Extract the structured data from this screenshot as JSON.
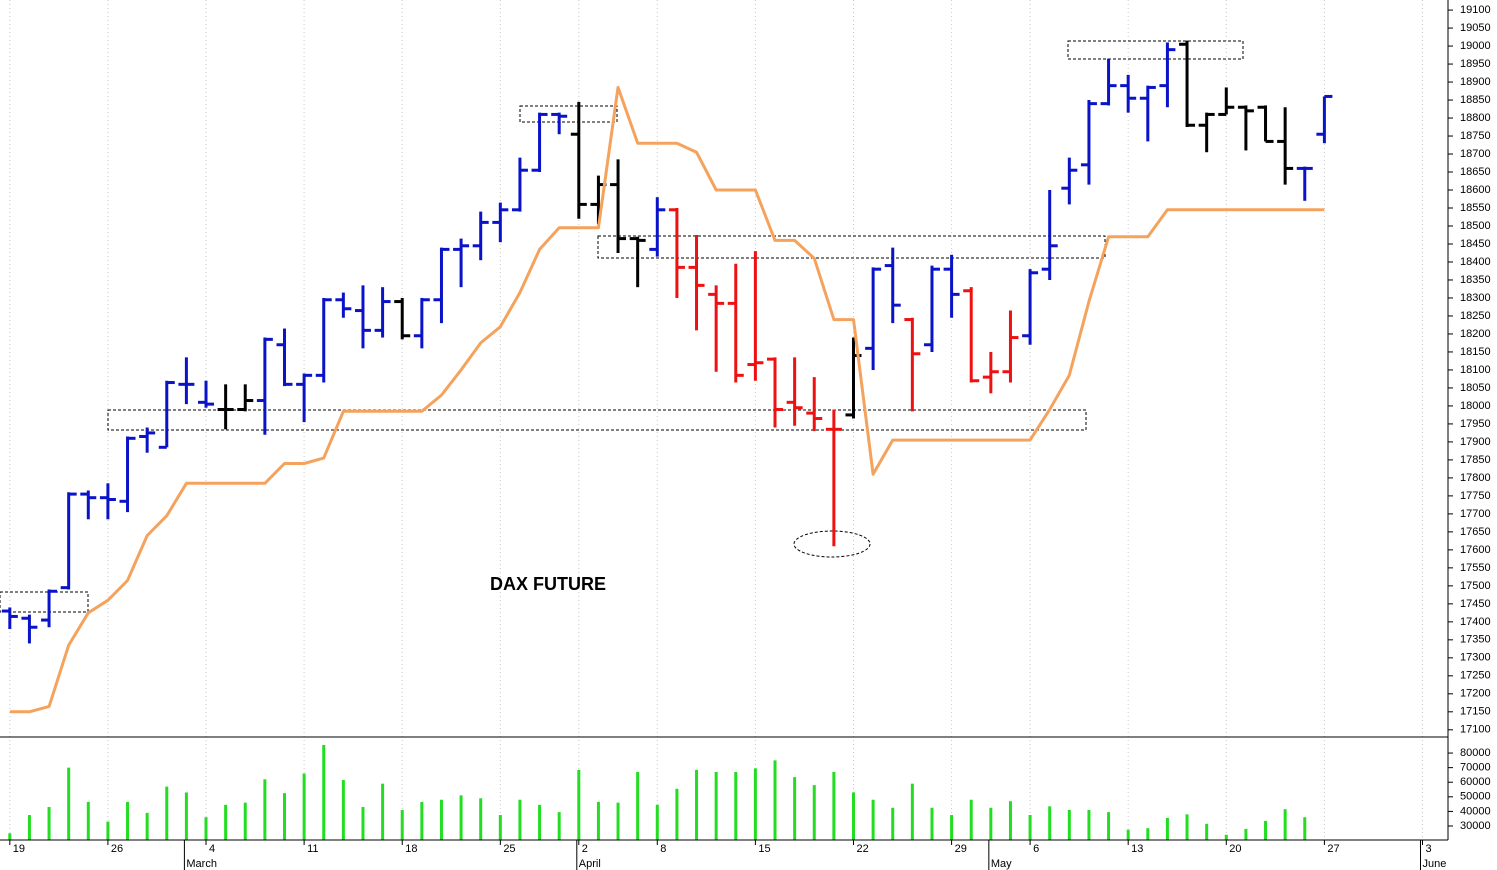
{
  "chart_data": [
    {
      "type": "ohlc",
      "title": "DAX FUTURE",
      "open": [
        17430,
        17410,
        17405,
        17495,
        17755,
        17745,
        17735,
        17915,
        17885,
        18060,
        18010,
        17990,
        17990,
        18015,
        18170,
        18060,
        18085,
        18295,
        18265,
        18210,
        18290,
        18195,
        18295,
        18435,
        18445,
        18510,
        18545,
        18655,
        18810,
        18755,
        18560,
        18615,
        18465,
        18435,
        18545,
        18385,
        18310,
        18285,
        18115,
        18130,
        18010,
        17980,
        17935,
        17975,
        18160,
        18390,
        18240,
        18170,
        18380,
        18320,
        18080,
        18095,
        18195,
        18380,
        18605,
        18670,
        18840,
        18890,
        18855,
        18890,
        19005,
        18780,
        18810,
        18830,
        18830,
        18735,
        18660,
        18755
      ],
      "high": [
        17440,
        17420,
        17490,
        17760,
        17765,
        17785,
        17915,
        17940,
        18070,
        18135,
        18070,
        18060,
        18060,
        18190,
        18215,
        18090,
        18300,
        18315,
        18335,
        18330,
        18300,
        18300,
        18440,
        18465,
        18540,
        18565,
        18690,
        18815,
        18815,
        18845,
        18640,
        18685,
        18470,
        18580,
        18550,
        18475,
        18335,
        18395,
        18430,
        18135,
        18135,
        18080,
        17990,
        18190,
        18385,
        18440,
        18245,
        18390,
        18420,
        18330,
        18150,
        18265,
        18380,
        18600,
        18690,
        18850,
        18965,
        18920,
        18890,
        19010,
        19015,
        18815,
        18885,
        18835,
        18835,
        18830,
        18665,
        18860
      ],
      "low": [
        17380,
        17340,
        17385,
        17490,
        17685,
        17685,
        17705,
        17870,
        17885,
        18005,
        17995,
        17935,
        17985,
        17920,
        18055,
        17955,
        18065,
        18245,
        18160,
        18190,
        18185,
        18160,
        18230,
        18330,
        18405,
        18455,
        18540,
        18650,
        18755,
        18520,
        18505,
        18425,
        18330,
        18415,
        18300,
        18210,
        18095,
        18065,
        18070,
        17940,
        17945,
        17930,
        17610,
        17965,
        18100,
        18230,
        17985,
        18150,
        18245,
        18065,
        18035,
        18065,
        18170,
        18350,
        18560,
        18615,
        18835,
        18815,
        18735,
        18830,
        18775,
        18705,
        18810,
        18710,
        18735,
        18615,
        18570,
        18730
      ],
      "close": [
        17415,
        17385,
        17485,
        17755,
        17745,
        17740,
        17910,
        17925,
        18065,
        18060,
        18005,
        17990,
        18015,
        18185,
        18060,
        18085,
        18295,
        18270,
        18210,
        18290,
        18195,
        18295,
        18435,
        18445,
        18510,
        18545,
        18655,
        18810,
        18805,
        18560,
        18615,
        18465,
        18460,
        18545,
        18385,
        18335,
        18285,
        18085,
        18120,
        17990,
        17995,
        17965,
        17935,
        18140,
        18380,
        18280,
        18145,
        18380,
        18310,
        18070,
        18095,
        18190,
        18370,
        18445,
        18655,
        18840,
        18890,
        18855,
        18885,
        18990,
        18780,
        18810,
        18830,
        18820,
        18735,
        18660,
        18660,
        18860
      ],
      "colors": [
        "#0b13c8",
        "#0b13c8",
        "#0b13c8",
        "#0b13c8",
        "#0b13c8",
        "#0b13c8",
        "#0b13c8",
        "#0b13c8",
        "#0b13c8",
        "#0b13c8",
        "#0b13c8",
        "#000000",
        "#000000",
        "#0b13c8",
        "#0b13c8",
        "#0b13c8",
        "#0b13c8",
        "#0b13c8",
        "#0b13c8",
        "#0b13c8",
        "#000000",
        "#0b13c8",
        "#0b13c8",
        "#0b13c8",
        "#0b13c8",
        "#0b13c8",
        "#0b13c8",
        "#0b13c8",
        "#0b13c8",
        "#000000",
        "#000000",
        "#000000",
        "#000000",
        "#0b13c8",
        "#ee1111",
        "#ee1111",
        "#ee1111",
        "#ee1111",
        "#ee1111",
        "#ee1111",
        "#ee1111",
        "#ee1111",
        "#ee1111",
        "#000000",
        "#0b13c8",
        "#0b13c8",
        "#ee1111",
        "#0b13c8",
        "#0b13c8",
        "#ee1111",
        "#ee1111",
        "#ee1111",
        "#0b13c8",
        "#0b13c8",
        "#0b13c8",
        "#0b13c8",
        "#0b13c8",
        "#0b13c8",
        "#0b13c8",
        "#0b13c8",
        "#000000",
        "#000000",
        "#000000",
        "#000000",
        "#000000",
        "#000000",
        "#0b13c8",
        "#0b13c8"
      ],
      "overlay": {
        "color": "#f5a25d",
        "values": [
          17150,
          17150,
          17165,
          17335,
          17425,
          17460,
          17515,
          17640,
          17695,
          17785,
          17785,
          17785,
          17785,
          17785,
          17840,
          17840,
          17855,
          17985,
          17985,
          17985,
          17985,
          17985,
          18030,
          18100,
          18175,
          18220,
          18315,
          18435,
          18495,
          18495,
          18495,
          18885,
          18730,
          18730,
          18730,
          18705,
          18600,
          18600,
          18600,
          18460,
          18460,
          18410,
          18240,
          18240,
          17810,
          17905,
          17905,
          17905,
          17905,
          17905,
          17905,
          17905,
          17905,
          17990,
          18085,
          18290,
          18470,
          18470,
          18470,
          18545,
          18545,
          18545,
          18545,
          18545,
          18545,
          18545,
          18545,
          18545
        ]
      },
      "ylim": [
        17080,
        19128
      ],
      "yticks": [
        17100,
        17150,
        17200,
        17250,
        17300,
        17350,
        17400,
        17450,
        17500,
        17550,
        17600,
        17650,
        17700,
        17750,
        17800,
        17850,
        17900,
        17950,
        18000,
        18050,
        18100,
        18150,
        18200,
        18250,
        18300,
        18350,
        18400,
        18450,
        18500,
        18550,
        18600,
        18650,
        18700,
        18750,
        18800,
        18850,
        18900,
        18950,
        19000,
        19050,
        19100
      ],
      "xlim": [
        -0.5,
        73.3
      ],
      "xticks": [
        {
          "value": 0,
          "label": "19"
        },
        {
          "value": 5,
          "label": "26"
        },
        {
          "value": 10,
          "label": "4"
        },
        {
          "value": 15,
          "label": "11"
        },
        {
          "value": 20,
          "label": "18"
        },
        {
          "value": 25,
          "label": "25"
        },
        {
          "value": 29,
          "label": "2"
        },
        {
          "value": 33,
          "label": "8"
        },
        {
          "value": 38,
          "label": "15"
        },
        {
          "value": 43,
          "label": "22"
        },
        {
          "value": 48,
          "label": "29"
        },
        {
          "value": 52,
          "label": "6"
        },
        {
          "value": 57,
          "label": "13"
        },
        {
          "value": 62,
          "label": "20"
        },
        {
          "value": 67,
          "label": "27"
        },
        {
          "value": 72,
          "label": "3"
        }
      ],
      "months": [
        {
          "value": 9,
          "label": "March"
        },
        {
          "value": 29,
          "label": "April"
        },
        {
          "value": 50,
          "label": "May"
        },
        {
          "value": 72,
          "label": "June"
        }
      ],
      "grid": true
    },
    {
      "type": "bar",
      "color": "#22dd22",
      "values": [
        25000,
        37500,
        43000,
        70000,
        46500,
        33000,
        46500,
        39000,
        57000,
        53000,
        36000,
        44500,
        46000,
        62000,
        52500,
        66000,
        85500,
        61500,
        43000,
        59000,
        41000,
        46500,
        48000,
        51000,
        49000,
        37500,
        48000,
        44500,
        39500,
        68500,
        46500,
        46000,
        67000,
        44500,
        55500,
        68500,
        67000,
        67000,
        69500,
        75000,
        63500,
        58000,
        67000,
        53000,
        48000,
        42500,
        59000,
        42500,
        37500,
        48000,
        42500,
        47000,
        37500,
        43500,
        41000,
        41000,
        39500,
        27500,
        28500,
        35500,
        38000,
        31500,
        24000,
        28000,
        33500,
        41500,
        36000,
        null
      ],
      "ylim": [
        20400,
        91000
      ],
      "yticks": [
        30000,
        40000,
        50000,
        60000,
        70000,
        80000
      ],
      "xlim": [
        -0.5,
        73.3
      ]
    }
  ]
}
